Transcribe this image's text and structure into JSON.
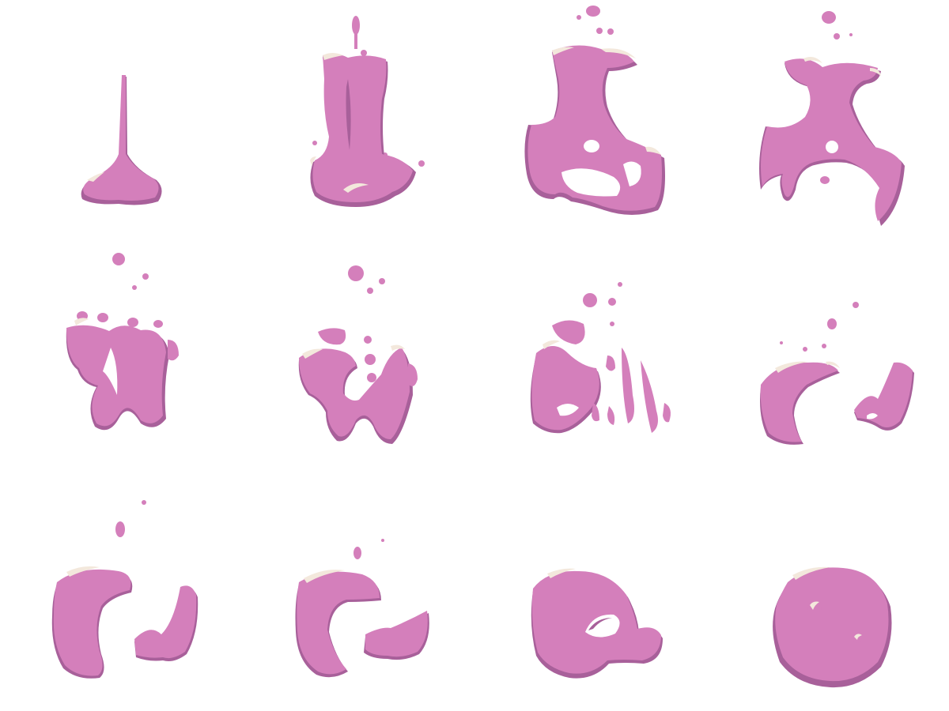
{
  "sprite_sheet": {
    "rows": 3,
    "columns": 4,
    "frame_count": 12,
    "background": "#ffffff",
    "colors": {
      "body": "#d47fbb",
      "shadow": "#a8609a",
      "highlight": "#f3e8dc"
    },
    "frames": [
      {
        "index": 1,
        "name": "frame-1-drip-stream"
      },
      {
        "index": 2,
        "name": "frame-2-column-splash"
      },
      {
        "index": 3,
        "name": "frame-3-column-burst"
      },
      {
        "index": 4,
        "name": "frame-4-column-spread"
      },
      {
        "index": 5,
        "name": "frame-5-break-apart"
      },
      {
        "index": 6,
        "name": "frame-6-fragments"
      },
      {
        "index": 7,
        "name": "frame-7-scatter"
      },
      {
        "index": 8,
        "name": "frame-8-two-pieces"
      },
      {
        "index": 9,
        "name": "frame-9-regroup"
      },
      {
        "index": 10,
        "name": "frame-10-merge"
      },
      {
        "index": 11,
        "name": "frame-11-blob-with-hole"
      },
      {
        "index": 12,
        "name": "frame-12-round-blob"
      }
    ]
  }
}
